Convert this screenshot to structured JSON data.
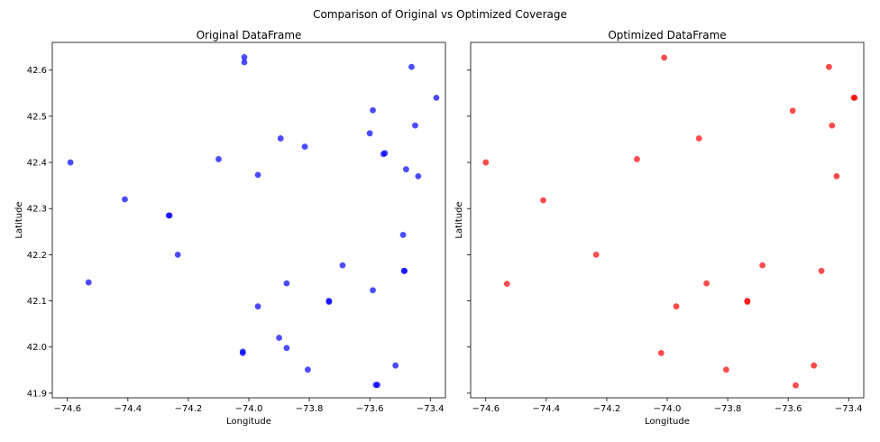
{
  "figure": {
    "title": "Comparison of Original vs Optimized Coverage"
  },
  "chart_data": [
    {
      "type": "scatter",
      "title": "Original DataFrame",
      "xlabel": "Longitude",
      "ylabel": "Latitude",
      "xlim": [
        -74.65,
        -73.35
      ],
      "ylim": [
        41.89,
        42.66
      ],
      "xticks": [
        -74.6,
        -74.4,
        -74.2,
        -74.0,
        -73.8,
        -73.6,
        -73.4
      ],
      "yticks": [
        41.9,
        42.0,
        42.1,
        42.2,
        42.3,
        42.4,
        42.5,
        42.6
      ],
      "grid": false,
      "color": "#0000ff",
      "points": [
        {
          "x": -74.59,
          "y": 42.4
        },
        {
          "x": -74.53,
          "y": 42.14
        },
        {
          "x": -74.41,
          "y": 42.32
        },
        {
          "x": -74.265,
          "y": 42.285
        },
        {
          "x": -74.262,
          "y": 42.285
        },
        {
          "x": -74.235,
          "y": 42.2
        },
        {
          "x": -74.1,
          "y": 42.407
        },
        {
          "x": -74.015,
          "y": 42.628
        },
        {
          "x": -74.015,
          "y": 42.617
        },
        {
          "x": -74.02,
          "y": 41.99
        },
        {
          "x": -74.02,
          "y": 41.987
        },
        {
          "x": -73.97,
          "y": 42.373
        },
        {
          "x": -73.97,
          "y": 42.088
        },
        {
          "x": -73.895,
          "y": 42.452
        },
        {
          "x": -73.9,
          "y": 42.02
        },
        {
          "x": -73.875,
          "y": 42.138
        },
        {
          "x": -73.875,
          "y": 41.998
        },
        {
          "x": -73.815,
          "y": 42.434
        },
        {
          "x": -73.805,
          "y": 41.951
        },
        {
          "x": -73.735,
          "y": 42.1
        },
        {
          "x": -73.735,
          "y": 42.098
        },
        {
          "x": -73.69,
          "y": 42.177
        },
        {
          "x": -73.6,
          "y": 42.463
        },
        {
          "x": -73.59,
          "y": 42.513
        },
        {
          "x": -73.59,
          "y": 42.123
        },
        {
          "x": -73.58,
          "y": 41.918
        },
        {
          "x": -73.575,
          "y": 41.918
        },
        {
          "x": -73.555,
          "y": 42.418
        },
        {
          "x": -73.55,
          "y": 42.42
        },
        {
          "x": -73.515,
          "y": 41.96
        },
        {
          "x": -73.49,
          "y": 42.243
        },
        {
          "x": -73.487,
          "y": 42.165
        },
        {
          "x": -73.485,
          "y": 42.165
        },
        {
          "x": -73.48,
          "y": 42.385
        },
        {
          "x": -73.462,
          "y": 42.607
        },
        {
          "x": -73.45,
          "y": 42.48
        },
        {
          "x": -73.44,
          "y": 42.37
        },
        {
          "x": -73.38,
          "y": 42.54
        }
      ]
    },
    {
      "type": "scatter",
      "title": "Optimized DataFrame",
      "xlabel": "Longitude",
      "ylabel": "Latitude",
      "xlim": [
        -74.65,
        -73.35
      ],
      "ylim": [
        41.89,
        42.66
      ],
      "xticks": [
        -74.6,
        -74.4,
        -74.2,
        -74.0,
        -73.8,
        -73.6,
        -73.4
      ],
      "yticks": [
        41.9,
        42.0,
        42.1,
        42.2,
        42.3,
        42.4,
        42.5,
        42.6
      ],
      "grid": false,
      "color": "#ff0000",
      "points": [
        {
          "x": -74.6,
          "y": 42.4
        },
        {
          "x": -74.53,
          "y": 42.137
        },
        {
          "x": -74.41,
          "y": 42.318
        },
        {
          "x": -74.235,
          "y": 42.2
        },
        {
          "x": -74.1,
          "y": 42.407
        },
        {
          "x": -74.01,
          "y": 42.627
        },
        {
          "x": -74.02,
          "y": 41.987
        },
        {
          "x": -73.97,
          "y": 42.088
        },
        {
          "x": -73.895,
          "y": 42.452
        },
        {
          "x": -73.87,
          "y": 42.138
        },
        {
          "x": -73.805,
          "y": 41.951
        },
        {
          "x": -73.735,
          "y": 42.1
        },
        {
          "x": -73.735,
          "y": 42.098
        },
        {
          "x": -73.685,
          "y": 42.177
        },
        {
          "x": -73.585,
          "y": 42.512
        },
        {
          "x": -73.575,
          "y": 41.917
        },
        {
          "x": -73.515,
          "y": 41.96
        },
        {
          "x": -73.49,
          "y": 42.165
        },
        {
          "x": -73.465,
          "y": 42.607
        },
        {
          "x": -73.455,
          "y": 42.48
        },
        {
          "x": -73.44,
          "y": 42.37
        },
        {
          "x": -73.383,
          "y": 42.54
        },
        {
          "x": -73.38,
          "y": 42.54
        }
      ]
    }
  ]
}
